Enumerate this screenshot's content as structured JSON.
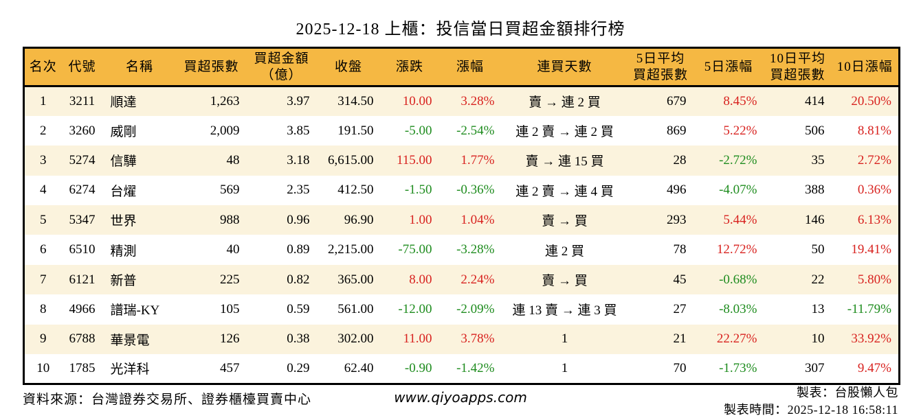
{
  "chart_data": {
    "type": "table",
    "title": "2025-12-18 上櫃：投信當日買超金額排行榜",
    "columns": [
      "名次",
      "代號",
      "名稱",
      "買超張數",
      "買超金額\n（億）",
      "收盤",
      "漲跌",
      "漲幅",
      "連買天數",
      "5日平均\n買超張數",
      "5日漲幅",
      "10日平均\n買超張數",
      "10日漲幅"
    ],
    "rows": [
      [
        "1",
        "3211",
        "順達",
        "1,263",
        "3.97",
        "314.50",
        "10.00",
        "3.28%",
        "賣 → 連 2 買",
        "679",
        "8.45%",
        "414",
        "20.50%"
      ],
      [
        "2",
        "3260",
        "威剛",
        "2,009",
        "3.85",
        "191.50",
        "-5.00",
        "-2.54%",
        "連 2 賣 → 連 2 買",
        "869",
        "5.22%",
        "506",
        "8.81%"
      ],
      [
        "3",
        "5274",
        "信驊",
        "48",
        "3.18",
        "6,615.00",
        "115.00",
        "1.77%",
        "賣 → 連 15 買",
        "28",
        "-2.72%",
        "35",
        "2.72%"
      ],
      [
        "4",
        "6274",
        "台燿",
        "569",
        "2.35",
        "412.50",
        "-1.50",
        "-0.36%",
        "連 2 賣 → 連 4 買",
        "496",
        "-4.07%",
        "388",
        "0.36%"
      ],
      [
        "5",
        "5347",
        "世界",
        "988",
        "0.96",
        "96.90",
        "1.00",
        "1.04%",
        "賣 → 買",
        "293",
        "5.44%",
        "146",
        "6.13%"
      ],
      [
        "6",
        "6510",
        "精測",
        "40",
        "0.89",
        "2,215.00",
        "-75.00",
        "-3.28%",
        "連 2 買",
        "78",
        "12.72%",
        "50",
        "19.41%"
      ],
      [
        "7",
        "6121",
        "新普",
        "225",
        "0.82",
        "365.00",
        "8.00",
        "2.24%",
        "賣 → 買",
        "45",
        "-0.68%",
        "22",
        "5.80%"
      ],
      [
        "8",
        "4966",
        "譜瑞-KY",
        "105",
        "0.59",
        "561.00",
        "-12.00",
        "-2.09%",
        "連 13 賣 → 連 3 買",
        "27",
        "-8.03%",
        "13",
        "-11.79%"
      ],
      [
        "9",
        "6788",
        "華景電",
        "126",
        "0.38",
        "302.00",
        "11.00",
        "3.78%",
        "1",
        "21",
        "22.27%",
        "10",
        "33.92%"
      ],
      [
        "10",
        "1785",
        "光洋科",
        "457",
        "0.29",
        "62.40",
        "-0.90",
        "-1.42%",
        "1",
        "70",
        "-1.73%",
        "307",
        "9.47%"
      ]
    ],
    "colored_columns": [
      6,
      7,
      10,
      12
    ],
    "color_rule": "positive values red (up), negative values green (down), Taiwan market convention",
    "layout": {
      "legend": "none",
      "grid": "alternating row shading"
    }
  },
  "colors": {
    "header_bg": "#f5b843",
    "row_alt_bg": "#fbf3dd",
    "row_bg": "#ffffff",
    "up_red": "#d8221f",
    "down_green": "#1e8c1e",
    "border": "#000000"
  },
  "footer": {
    "source": "資料來源：台灣證券交易所、證券櫃檯買賣中心",
    "website": "www.qiyoapps.com",
    "author": "製表：台股懶人包",
    "generated": "製表時間：2025-12-18 16:58:11"
  }
}
